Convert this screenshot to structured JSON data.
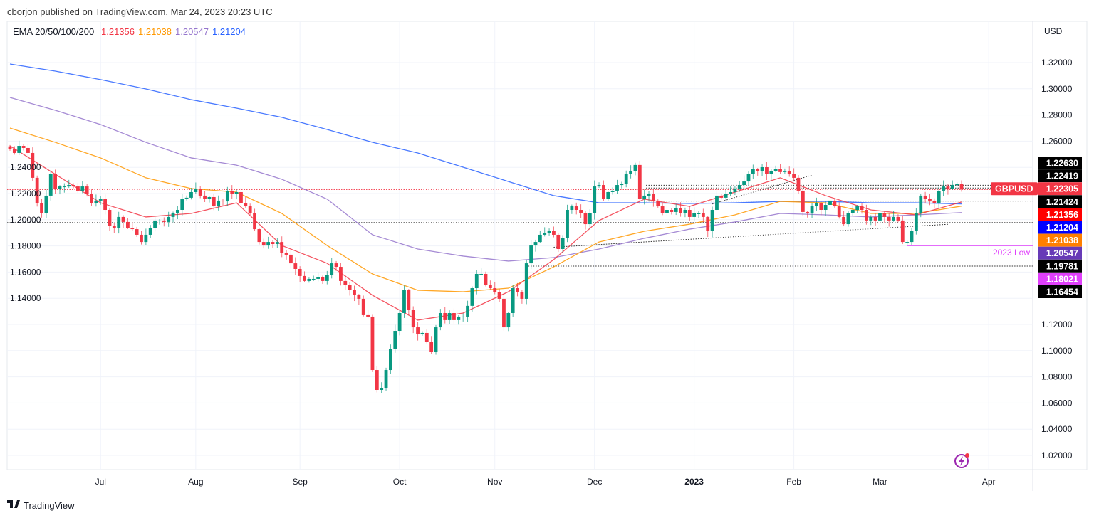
{
  "header": {
    "published": "cborjon published on TradingView.com, Mar 24, 2023 20:23 UTC"
  },
  "legend": {
    "label": "EMA 20/50/100/200",
    "ema20": "1.21356",
    "ema50": "1.21038",
    "ema100": "1.20547",
    "ema200": "1.21204"
  },
  "footer": {
    "logo_text": "TradingView"
  },
  "colors": {
    "up": "#089981",
    "down": "#f23645",
    "ema20": "#f23645",
    "ema50": "#ff9800",
    "ema100": "#9575cd",
    "ema200": "#2962ff",
    "low2023": "#e040fb"
  },
  "chart_data": {
    "type": "candlestick",
    "symbol": "GBPUSD",
    "currency": "USD",
    "ylim": [
      1.01,
      1.33
    ],
    "yticks": [
      "1.32000",
      "1.30000",
      "1.28000",
      "1.26000",
      "1.24000",
      "1.22000",
      "1.20000",
      "1.18000",
      "1.16000",
      "1.14000",
      "1.12000",
      "1.10000",
      "1.08000",
      "1.06000",
      "1.04000",
      "1.02000"
    ],
    "xticks": [
      {
        "label": "Jul",
        "bar": 20
      },
      {
        "label": "Aug",
        "bar": 41
      },
      {
        "label": "Sep",
        "bar": 64
      },
      {
        "label": "Oct",
        "bar": 86
      },
      {
        "label": "Nov",
        "bar": 107
      },
      {
        "label": "Dec",
        "bar": 129
      },
      {
        "label": "2023",
        "bar": 151,
        "bold": true
      },
      {
        "label": "Feb",
        "bar": 173
      },
      {
        "label": "Mar",
        "bar": 192
      },
      {
        "label": "Apr",
        "bar": 216
      }
    ],
    "first_open": 1.256,
    "closes": [
      1.2537,
      1.251,
      1.2564,
      1.2548,
      1.251,
      1.232,
      1.2129,
      1.2048,
      1.2184,
      1.2347,
      1.2238,
      1.2254,
      1.2254,
      1.2265,
      1.2254,
      1.2222,
      1.2254,
      1.22,
      1.2129,
      1.2146,
      1.2157,
      1.2075,
      1.195,
      1.1939,
      1.2021,
      1.1983,
      1.1939,
      1.1928,
      1.1885,
      1.183,
      1.1885,
      1.1939,
      1.1994,
      1.1994,
      1.1983,
      1.2021,
      1.2048,
      1.2075,
      1.2157,
      1.2168,
      1.2211,
      1.2238,
      1.2184,
      1.2157,
      1.2173,
      1.2102,
      1.2146,
      1.214,
      1.2222,
      1.22,
      1.2211,
      1.2129,
      1.2102,
      1.2048,
      1.1928,
      1.183,
      1.1803,
      1.183,
      1.1814,
      1.183,
      1.1749,
      1.1733,
      1.1667,
      1.1624,
      1.157,
      1.1532,
      1.1548,
      1.1548,
      1.1559,
      1.1532,
      1.158,
      1.1667,
      1.164,
      1.1532,
      1.1504,
      1.1461,
      1.1423,
      1.1396,
      1.1271,
      1.126,
      1.0852,
      1.07,
      1.0716,
      1.0852,
      1.1015,
      1.1151,
      1.1287,
      1.1461,
      1.1314,
      1.1178,
      1.1124,
      1.1135,
      1.1069,
      1.0988,
      1.1178,
      1.1287,
      1.1233,
      1.1287,
      1.1233,
      1.126,
      1.126,
      1.1342,
      1.1477,
      1.1586,
      1.1586,
      1.1504,
      1.1477,
      1.145,
      1.1396,
      1.1178,
      1.1287,
      1.1477,
      1.145,
      1.1396,
      1.1667,
      1.1803,
      1.183,
      1.1885,
      1.1896,
      1.1912,
      1.1885,
      1.1776,
      1.1858,
      1.2075,
      1.2102,
      1.2075,
      1.2048,
      1.1966,
      1.2048,
      1.2254,
      1.2265,
      1.2157,
      1.2211,
      1.2222,
      1.2265,
      1.2276,
      1.2347,
      1.2374,
      1.2418,
      1.2157,
      1.2184,
      1.22,
      1.2146,
      1.2102,
      1.2048,
      1.2075,
      1.2059,
      1.2091,
      1.2048,
      1.2075,
      1.2021,
      1.2048,
      1.2048,
      1.2021,
      1.1912,
      1.2075,
      1.2184,
      1.2168,
      1.22,
      1.2211,
      1.2238,
      1.2265,
      1.2292,
      1.2347,
      1.2385,
      1.2374,
      1.2401,
      1.2347,
      1.2374,
      1.2385,
      1.2364,
      1.2374,
      1.2347,
      1.232,
      1.2222,
      1.2059,
      1.2048,
      1.2102,
      1.2129,
      1.2075,
      1.2113,
      1.2146,
      1.2102,
      1.2021,
      1.1966,
      1.2048,
      1.2075,
      1.2102,
      1.2075,
      1.1994,
      1.2021,
      1.1994,
      1.2048,
      1.2021,
      1.1994,
      1.2021,
      1.1994,
      1.183,
      1.183,
      1.1912,
      1.2048,
      1.2184,
      1.2157,
      1.2146,
      1.2129,
      1.2222,
      1.2254,
      1.2238,
      1.2265,
      1.2276,
      1.22305
    ],
    "ema_sample_step": 10,
    "ema": {
      "ema20": [
        1.2564,
        1.2347,
        1.2129,
        1.2021,
        1.2048,
        1.2129,
        1.1803,
        1.1667,
        1.1423,
        1.1233,
        1.1287,
        1.145,
        1.1695,
        1.1994,
        1.2157,
        1.2102,
        1.2211,
        1.232,
        1.2184,
        1.2075,
        1.2037,
        1.21356
      ],
      "ema50": [
        1.27,
        1.2591,
        1.2472,
        1.232,
        1.2238,
        1.2211,
        1.2048,
        1.1803,
        1.1586,
        1.1461,
        1.145,
        1.1477,
        1.164,
        1.183,
        1.1912,
        1.1966,
        1.2037,
        1.214,
        1.2129,
        1.2048,
        1.2048,
        1.21038
      ],
      "ema100": [
        1.2934,
        1.2836,
        1.2727,
        1.2591,
        1.2472,
        1.2417,
        1.2309,
        1.2157,
        1.1885,
        1.1776,
        1.1722,
        1.1684,
        1.1711,
        1.1776,
        1.1858,
        1.1928,
        1.1983,
        1.2048,
        1.2037,
        1.2021,
        1.2037,
        1.20547
      ],
      "ema200": [
        1.3189,
        1.3135,
        1.307,
        1.2999,
        1.2917,
        1.2852,
        1.2782,
        1.2689,
        1.2591,
        1.251,
        1.2401,
        1.2292,
        1.2184,
        1.2129,
        1.2129,
        1.2124,
        1.2129,
        1.214,
        1.214,
        1.2129,
        1.2129,
        1.21204
      ]
    },
    "levels": [
      {
        "value": 1.2263,
        "label": "1.22630",
        "style": "dotted",
        "from_bar": 141
      },
      {
        "value": 1.22419,
        "label": "1.22419",
        "style": "dotted",
        "from_bar": 141
      },
      {
        "value": 1.21424,
        "label": "1.21424",
        "style": "dotted",
        "from_bar": 141
      },
      {
        "value": 1.19781,
        "label": "1.19781",
        "style": "dotted",
        "from_bar": 0
      },
      {
        "value": 1.16454,
        "label": "1.16454",
        "style": "dotted",
        "from_bar": 115
      },
      {
        "value": 1.18021,
        "label": "1.18021",
        "style": "solid",
        "from_bar": 198,
        "text": "2023 Low"
      }
    ],
    "trendlines": [
      {
        "from": [
          120,
          1.179
        ],
        "to": [
          207,
          1.1965
        ]
      },
      {
        "from": [
          155,
          1.212
        ],
        "to": [
          177,
          1.234
        ]
      }
    ],
    "price_labels": [
      {
        "value": "1.22630",
        "bg": "#000000"
      },
      {
        "value": "1.22419",
        "bg": "#000000"
      },
      {
        "value": "1.22305",
        "bg": "#f23645",
        "name": "GBPUSD"
      },
      {
        "value": "1.21424",
        "bg": "#000000"
      },
      {
        "value": "1.21356",
        "bg": "#ff0000"
      },
      {
        "value": "1.21204",
        "bg": "#0000ff"
      },
      {
        "value": "1.21038",
        "bg": "#ff7f00"
      },
      {
        "value": "1.20547",
        "bg": "#673ab7"
      },
      {
        "value": "1.19781",
        "bg": "#000000"
      },
      {
        "value": "1.18021",
        "bg": "#e040fb"
      },
      {
        "value": "1.16454",
        "bg": "#000000"
      }
    ],
    "current_price": 1.22305
  }
}
